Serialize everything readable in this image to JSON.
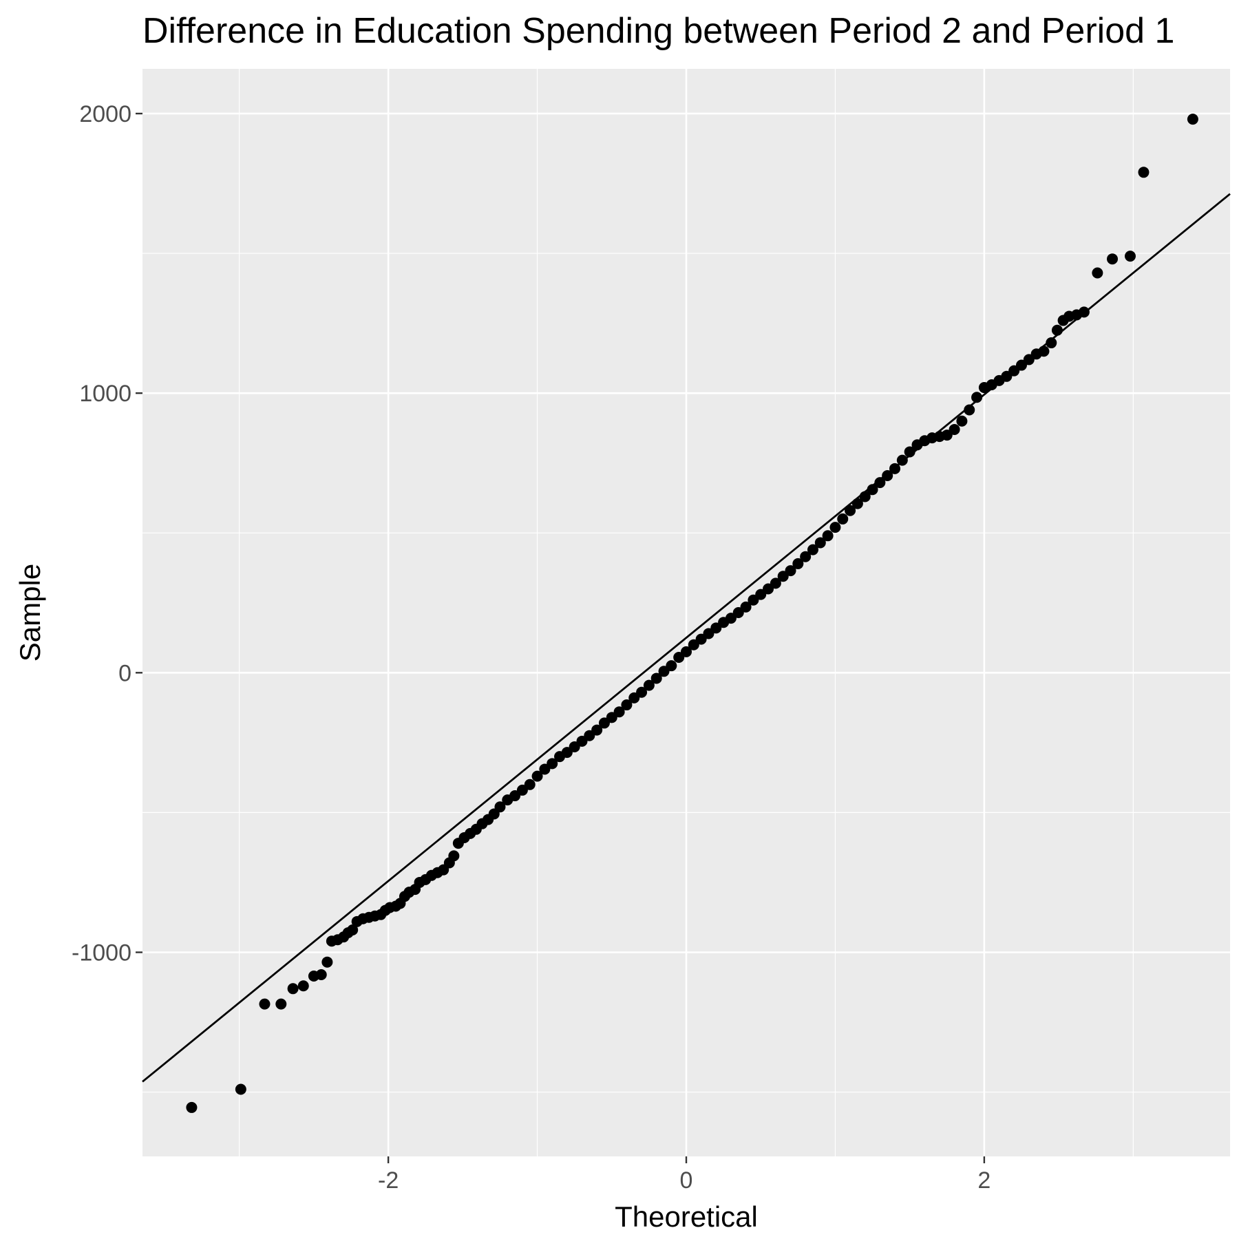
{
  "chart_data": {
    "type": "scatter",
    "subtype": "qq-plot",
    "title": "Difference in Education Spending between Period 2 and Period 1",
    "xlabel": "Theoretical",
    "ylabel": "Sample",
    "xlim": [
      -3.65,
      3.65
    ],
    "ylim": [
      -1730,
      2160
    ],
    "x_ticks": [
      -2,
      0,
      2
    ],
    "x_tick_labels": [
      "-2",
      "0",
      "2"
    ],
    "y_ticks": [
      -1000,
      0,
      1000,
      2000
    ],
    "y_tick_labels": [
      "-1000",
      "0",
      "1000",
      "2000"
    ],
    "grid": true,
    "legend": "none",
    "reference_line": {
      "intercept": 125,
      "slope": 435
    },
    "colors": {
      "panel": "#ebebeb",
      "grid": "#ffffff",
      "point": "#000000",
      "line": "#000000"
    },
    "points": [
      [
        -3.32,
        -1555
      ],
      [
        -2.99,
        -1490
      ],
      [
        -2.83,
        -1185
      ],
      [
        -2.72,
        -1185
      ],
      [
        -2.64,
        -1130
      ],
      [
        -2.57,
        -1120
      ],
      [
        -2.5,
        -1085
      ],
      [
        -2.45,
        -1080
      ],
      [
        -2.41,
        -1035
      ],
      [
        -2.38,
        -960
      ],
      [
        -2.34,
        -955
      ],
      [
        -2.3,
        -945
      ],
      [
        -2.27,
        -930
      ],
      [
        -2.24,
        -920
      ],
      [
        -2.21,
        -890
      ],
      [
        -2.17,
        -880
      ],
      [
        -2.13,
        -875
      ],
      [
        -2.09,
        -870
      ],
      [
        -2.05,
        -865
      ],
      [
        -2.02,
        -850
      ],
      [
        -1.99,
        -840
      ],
      [
        -1.95,
        -835
      ],
      [
        -1.92,
        -825
      ],
      [
        -1.89,
        -800
      ],
      [
        -1.86,
        -785
      ],
      [
        -1.82,
        -775
      ],
      [
        -1.79,
        -750
      ],
      [
        -1.75,
        -740
      ],
      [
        -1.71,
        -725
      ],
      [
        -1.67,
        -715
      ],
      [
        -1.63,
        -705
      ],
      [
        -1.59,
        -680
      ],
      [
        -1.56,
        -655
      ],
      [
        -1.53,
        -610
      ],
      [
        -1.49,
        -590
      ],
      [
        -1.45,
        -575
      ],
      [
        -1.41,
        -560
      ],
      [
        -1.37,
        -540
      ],
      [
        -1.33,
        -525
      ],
      [
        -1.29,
        -505
      ],
      [
        -1.25,
        -480
      ],
      [
        -1.2,
        -455
      ],
      [
        -1.15,
        -440
      ],
      [
        -1.1,
        -420
      ],
      [
        -1.05,
        -400
      ],
      [
        -1.0,
        -370
      ],
      [
        -0.95,
        -345
      ],
      [
        -0.9,
        -325
      ],
      [
        -0.85,
        -300
      ],
      [
        -0.8,
        -285
      ],
      [
        -0.75,
        -265
      ],
      [
        -0.7,
        -245
      ],
      [
        -0.65,
        -225
      ],
      [
        -0.6,
        -205
      ],
      [
        -0.55,
        -180
      ],
      [
        -0.5,
        -160
      ],
      [
        -0.45,
        -140
      ],
      [
        -0.4,
        -115
      ],
      [
        -0.35,
        -90
      ],
      [
        -0.3,
        -70
      ],
      [
        -0.25,
        -45
      ],
      [
        -0.2,
        -20
      ],
      [
        -0.15,
        5
      ],
      [
        -0.1,
        25
      ],
      [
        -0.05,
        55
      ],
      [
        0.0,
        75
      ],
      [
        0.05,
        100
      ],
      [
        0.1,
        120
      ],
      [
        0.15,
        140
      ],
      [
        0.2,
        160
      ],
      [
        0.25,
        180
      ],
      [
        0.3,
        195
      ],
      [
        0.35,
        215
      ],
      [
        0.4,
        235
      ],
      [
        0.45,
        260
      ],
      [
        0.5,
        280
      ],
      [
        0.55,
        300
      ],
      [
        0.6,
        320
      ],
      [
        0.65,
        345
      ],
      [
        0.7,
        365
      ],
      [
        0.75,
        390
      ],
      [
        0.8,
        415
      ],
      [
        0.85,
        440
      ],
      [
        0.9,
        465
      ],
      [
        0.95,
        490
      ],
      [
        1.0,
        520
      ],
      [
        1.05,
        550
      ],
      [
        1.1,
        580
      ],
      [
        1.15,
        605
      ],
      [
        1.2,
        630
      ],
      [
        1.25,
        655
      ],
      [
        1.3,
        680
      ],
      [
        1.35,
        705
      ],
      [
        1.4,
        730
      ],
      [
        1.45,
        760
      ],
      [
        1.5,
        790
      ],
      [
        1.55,
        815
      ],
      [
        1.6,
        830
      ],
      [
        1.65,
        840
      ],
      [
        1.7,
        845
      ],
      [
        1.75,
        850
      ],
      [
        1.8,
        870
      ],
      [
        1.85,
        900
      ],
      [
        1.9,
        940
      ],
      [
        1.95,
        985
      ],
      [
        2.0,
        1020
      ],
      [
        2.05,
        1030
      ],
      [
        2.1,
        1045
      ],
      [
        2.15,
        1060
      ],
      [
        2.2,
        1080
      ],
      [
        2.25,
        1100
      ],
      [
        2.3,
        1120
      ],
      [
        2.35,
        1140
      ],
      [
        2.4,
        1150
      ],
      [
        2.45,
        1180
      ],
      [
        2.49,
        1225
      ],
      [
        2.53,
        1260
      ],
      [
        2.57,
        1275
      ],
      [
        2.62,
        1280
      ],
      [
        2.67,
        1290
      ],
      [
        2.76,
        1430
      ],
      [
        2.86,
        1480
      ],
      [
        2.98,
        1490
      ],
      [
        3.07,
        1790
      ],
      [
        3.4,
        1980
      ]
    ]
  }
}
